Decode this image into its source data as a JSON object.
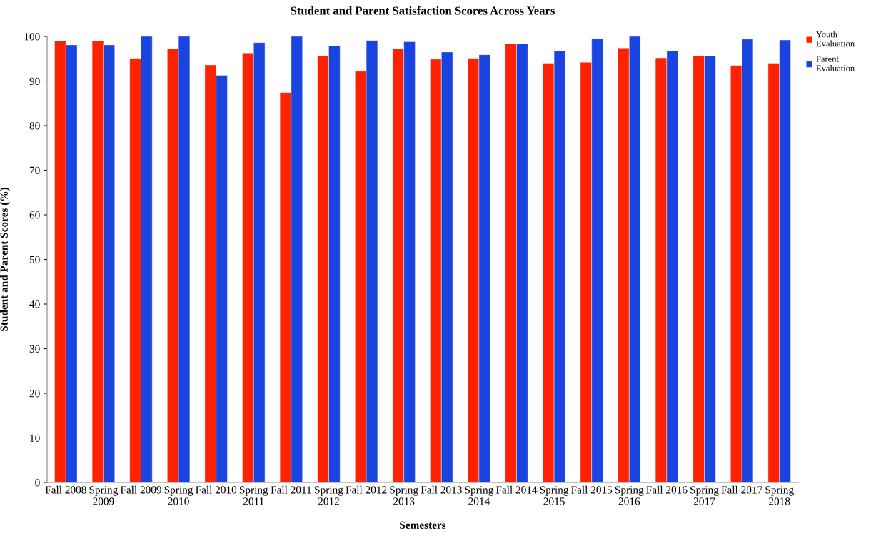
{
  "chart_data": {
    "type": "bar",
    "title": "Student and Parent Satisfaction Scores Across Years",
    "xlabel": "Semesters",
    "ylabel": "Student and Parent Scores (%)",
    "categories": [
      "Fall 2008",
      "Spring\n2009",
      "Fall 2009",
      "Spring\n2010",
      "Fall 2010",
      "Spring\n2011",
      "Fall 2011",
      "Spring\n2012",
      "Fall 2012",
      "Spring\n2013",
      "Fall 2013",
      "Spring\n2014",
      "Fall 2014",
      "Spring\n2015",
      "Fall 2015",
      "Spring\n2016",
      "Fall 2016",
      "Spring\n2017",
      "Fall 2017",
      "Spring\n2018"
    ],
    "series": [
      {
        "name": "Youth\nEvaluation",
        "color": "#ff2200",
        "values": [
          99.0,
          99.0,
          95.1,
          97.2,
          93.6,
          96.3,
          87.4,
          95.7,
          92.2,
          97.2,
          94.9,
          95.1,
          98.4,
          94.0,
          94.2,
          97.4,
          95.2,
          95.7,
          93.5,
          94.0
        ]
      },
      {
        "name": "Parent\nEvaluation",
        "color": "#1a44e0",
        "values": [
          98.1,
          98.1,
          100,
          100,
          91.3,
          98.6,
          100,
          97.9,
          99.1,
          98.8,
          96.5,
          95.9,
          98.4,
          96.8,
          99.5,
          100,
          96.8,
          95.6,
          99.4,
          99.2
        ]
      }
    ],
    "ylim": [
      0,
      100
    ],
    "yticks": [
      0,
      10,
      20,
      30,
      40,
      50,
      60,
      70,
      80,
      90,
      100
    ],
    "grid": false,
    "legend": "top right"
  }
}
